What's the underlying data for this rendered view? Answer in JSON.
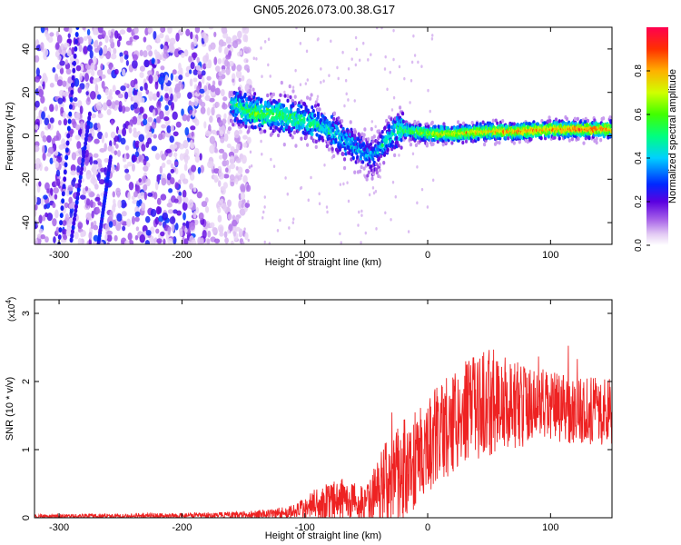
{
  "title": "GN05.2026.073.00.38.G17",
  "colors": {
    "snr_line": "#ee2222",
    "spectro_background": "#ffffff",
    "axis": "#000000"
  },
  "chart_data": [
    {
      "type": "heatmap",
      "name": "spectrogram",
      "xlabel": "Height of straight line (km)",
      "ylabel": "Frequency (Hz)",
      "xlim": [
        -320,
        150
      ],
      "ylim": [
        -50,
        50
      ],
      "xticks": [
        -300,
        -200,
        -100,
        0,
        100
      ],
      "yticks": [
        -40,
        -20,
        0,
        20,
        40
      ],
      "colorbar": {
        "label": "Normalized spectral amplitude",
        "range": [
          0,
          1
        ],
        "ticks": [
          "0.0",
          "0.2",
          "0.4",
          "0.6",
          "0.8"
        ],
        "colormap": "rainbow (white-lavender-violet-blue-cyan-green-yellow-orange-red)"
      },
      "features": {
        "scatter_region_x": [
          -320,
          -155
        ],
        "signal_track": [
          {
            "x": -160,
            "freq": 15,
            "amp": 0.45
          },
          {
            "x": -140,
            "freq": 10,
            "amp": 0.6
          },
          {
            "x": -120,
            "freq": 10,
            "amp": 0.55
          },
          {
            "x": -100,
            "freq": 7,
            "amp": 0.5
          },
          {
            "x": -80,
            "freq": 3,
            "amp": 0.45
          },
          {
            "x": -60,
            "freq": -5,
            "amp": 0.4
          },
          {
            "x": -45,
            "freq": -10,
            "amp": 0.35
          },
          {
            "x": -25,
            "freq": 3,
            "amp": 0.5
          },
          {
            "x": 0,
            "freq": 1,
            "amp": 0.7
          },
          {
            "x": 25,
            "freq": 1,
            "amp": 0.75
          },
          {
            "x": 50,
            "freq": 2,
            "amp": 0.8
          },
          {
            "x": 75,
            "freq": 2,
            "amp": 0.85
          },
          {
            "x": 100,
            "freq": 3,
            "amp": 0.85
          },
          {
            "x": 125,
            "freq": 3,
            "amp": 0.9
          },
          {
            "x": 150,
            "freq": 3,
            "amp": 0.85
          }
        ]
      }
    },
    {
      "type": "line",
      "name": "snr",
      "xlabel": "Height of straight line (km)",
      "ylabel": "SNR (10 * v/v)",
      "exponent_label": "(x10",
      "exponent_power": "4",
      "exponent_close": ")",
      "xlim": [
        -320,
        150
      ],
      "ylim": [
        0,
        3.2
      ],
      "xticks": [
        -300,
        -200,
        -100,
        0,
        100
      ],
      "yticks": [
        0,
        1,
        2,
        3
      ],
      "envelope": [
        {
          "x": -320,
          "mean": 0.02,
          "spread": 0.03
        },
        {
          "x": -200,
          "mean": 0.03,
          "spread": 0.04
        },
        {
          "x": -150,
          "mean": 0.04,
          "spread": 0.05
        },
        {
          "x": -110,
          "mean": 0.08,
          "spread": 0.1
        },
        {
          "x": -90,
          "mean": 0.2,
          "spread": 0.25
        },
        {
          "x": -70,
          "mean": 0.28,
          "spread": 0.3
        },
        {
          "x": -50,
          "mean": 0.2,
          "spread": 0.25
        },
        {
          "x": -35,
          "mean": 0.5,
          "spread": 0.6
        },
        {
          "x": -20,
          "mean": 0.7,
          "spread": 0.8
        },
        {
          "x": -5,
          "mean": 0.95,
          "spread": 0.7
        },
        {
          "x": 10,
          "mean": 1.25,
          "spread": 0.75
        },
        {
          "x": 30,
          "mean": 1.55,
          "spread": 0.75
        },
        {
          "x": 50,
          "mean": 1.7,
          "spread": 0.8
        },
        {
          "x": 80,
          "mean": 1.65,
          "spread": 0.6
        },
        {
          "x": 110,
          "mean": 1.6,
          "spread": 0.5
        },
        {
          "x": 150,
          "mean": 1.55,
          "spread": 0.5
        }
      ]
    }
  ]
}
